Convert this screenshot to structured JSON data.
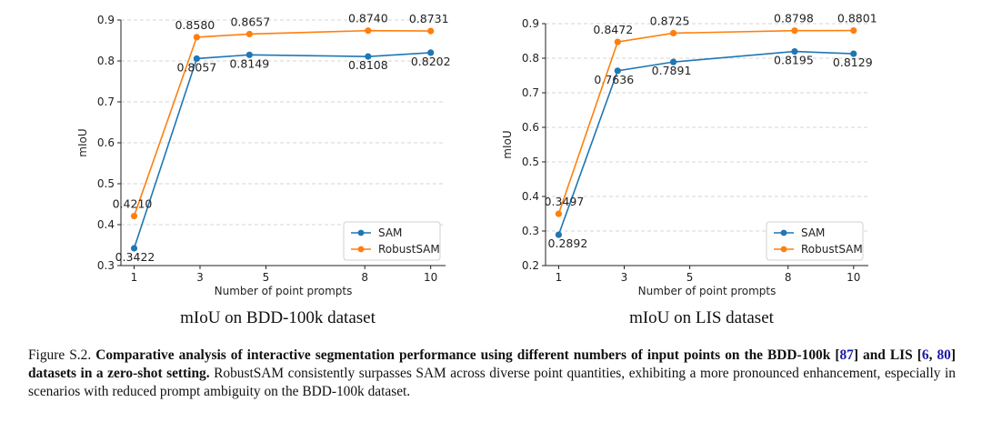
{
  "colors": {
    "sam": "#1f77b4",
    "robustsam": "#ff7f0e",
    "ref": "#1a1aa6"
  },
  "chart_data": [
    {
      "type": "line",
      "title": "mIoU on BDD-100k dataset",
      "xlabel": "Number of point prompts",
      "ylabel": "mIoU",
      "xticks": [
        "1",
        "3",
        "5",
        "8",
        "10"
      ],
      "yticks": [
        "0.3",
        "0.4",
        "0.5",
        "0.6",
        "0.7",
        "0.8",
        "0.9"
      ],
      "ylim": [
        0.3,
        0.9
      ],
      "grid": "horizontal-dashed",
      "legend_position": "lower-right",
      "series": [
        {
          "name": "SAM",
          "color": "#1f77b4",
          "x": [
            1,
            2.9,
            4.5,
            8.1,
            10
          ],
          "values": [
            0.3422,
            0.8057,
            0.8149,
            0.8108,
            0.8202
          ],
          "labels": [
            "0.3422",
            "0.8057",
            "0.8149",
            "0.8108",
            "0.8202"
          ]
        },
        {
          "name": "RobustSAM",
          "color": "#ff7f0e",
          "x": [
            1,
            2.9,
            4.5,
            8.1,
            10
          ],
          "values": [
            0.421,
            0.858,
            0.8657,
            0.874,
            0.8731
          ],
          "labels": [
            "0.4210",
            "0.8580",
            "0.8657",
            "0.8740",
            "0.8731"
          ]
        }
      ]
    },
    {
      "type": "line",
      "title": "mIoU on LIS dataset",
      "xlabel": "Number of point prompts",
      "ylabel": "mIoU",
      "xticks": [
        "1",
        "3",
        "5",
        "8",
        "10"
      ],
      "yticks": [
        "0.2",
        "0.3",
        "0.4",
        "0.5",
        "0.6",
        "0.7",
        "0.8",
        "0.9"
      ],
      "ylim": [
        0.2,
        0.9
      ],
      "grid": "horizontal-dashed",
      "legend_position": "lower-right",
      "series": [
        {
          "name": "SAM",
          "color": "#1f77b4",
          "x": [
            1,
            2.8,
            4.5,
            8.2,
            10
          ],
          "values": [
            0.2892,
            0.7636,
            0.7891,
            0.8195,
            0.8129
          ],
          "labels": [
            "0.2892",
            "0.7636",
            "0.7891",
            "0.8195",
            "0.8129"
          ]
        },
        {
          "name": "RobustSAM",
          "color": "#ff7f0e",
          "x": [
            1,
            2.8,
            4.5,
            8.2,
            10
          ],
          "values": [
            0.3497,
            0.8472,
            0.8725,
            0.8798,
            0.8801
          ],
          "labels": [
            "0.3497",
            "0.8472",
            "0.8725",
            "0.8798",
            "0.8801"
          ]
        }
      ]
    }
  ],
  "caption": {
    "prefix": "Figure S.2.",
    "bold_1": "Comparative analysis of interactive segmentation performance using different numbers of input points on the BDD-100k [",
    "ref_87": "87",
    "bold_2": "] and LIS [",
    "ref_6": "6",
    "bold_sep": ", ",
    "ref_80": "80",
    "bold_3": "] datasets in a zero-shot setting.",
    "rest": "RobustSAM consistently surpasses SAM across diverse point quantities, exhibiting a more pronounced enhancement, especially in scenarios with reduced prompt ambiguity on the BDD-100k dataset."
  }
}
